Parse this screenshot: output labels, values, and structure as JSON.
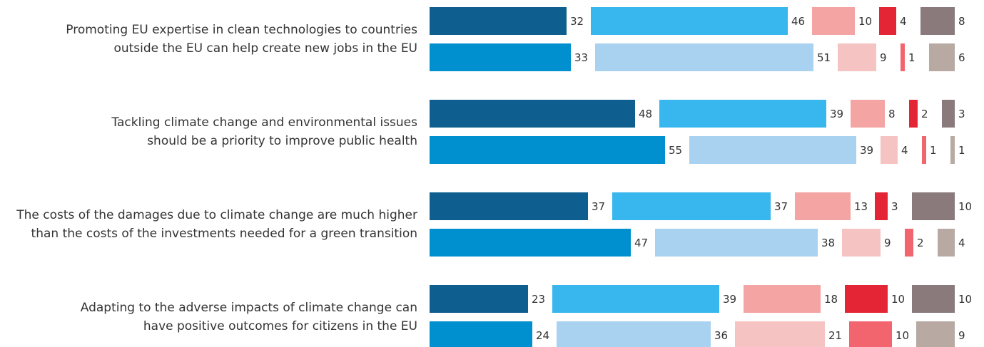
{
  "chart_data": {
    "type": "stacked_bar",
    "categories": [
      [
        "Promoting EU expertise in clean technologies to countries",
        "outside the EU can help create new jobs in the EU"
      ],
      [
        "Tackling climate change and environmental issues",
        "should be a priority to improve public health"
      ],
      [
        "The costs of the damages due to climate change are much higher",
        "than the costs of the investments needed for a green transition"
      ],
      [
        "Adapting to the adverse impacts of climate change can",
        "have positive outcomes for citizens in the EU"
      ]
    ],
    "rows": [
      {
        "segments": [
          {
            "color": "#0e5f8f",
            "values": [
              32,
              48,
              37,
              23
            ]
          },
          {
            "color": "#38b6ee",
            "values": [
              46,
              39,
              37,
              39
            ]
          },
          {
            "color": "#f4a4a2",
            "values": [
              10,
              8,
              13,
              18
            ]
          },
          {
            "color": "#e42535",
            "values": [
              4,
              2,
              3,
              10
            ]
          },
          {
            "color": "#8a7a7c",
            "values": [
              8,
              3,
              10,
              10
            ]
          }
        ]
      },
      {
        "segments": [
          {
            "color": "#0090cf",
            "values": [
              33,
              55,
              47,
              24
            ]
          },
          {
            "color": "#a9d2f0",
            "values": [
              51,
              39,
              38,
              36
            ]
          },
          {
            "color": "#f5c3c1",
            "values": [
              9,
              4,
              9,
              21
            ]
          },
          {
            "color": "#f2656f",
            "values": [
              1,
              1,
              2,
              10
            ]
          },
          {
            "color": "#b8aaa2",
            "values": [
              6,
              1,
              4,
              9
            ]
          }
        ]
      }
    ]
  }
}
